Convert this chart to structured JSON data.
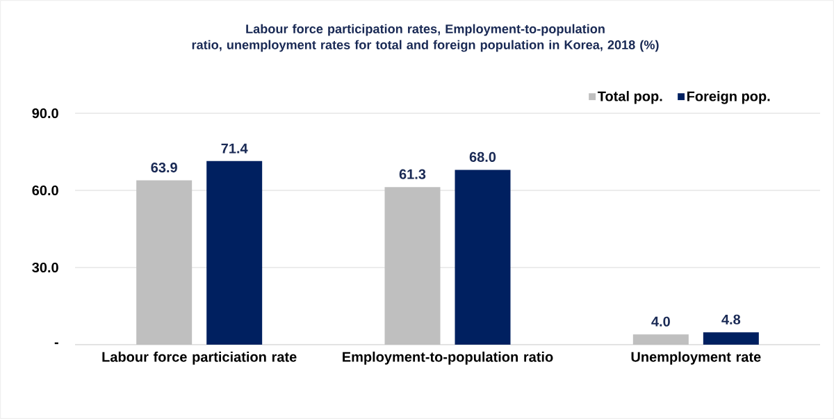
{
  "chart_data": {
    "type": "bar",
    "title": "Labour force participation rates, Employment-to-population ratio, unemployment rates for total and foreign population in Korea,  2018 (%)",
    "categories": [
      "Labour force particiation rate",
      "Employment-to-population ratio",
      "Unemployment rate"
    ],
    "series": [
      {
        "name": "Total pop.",
        "color": "#bfbfbf",
        "values": [
          63.9,
          61.3,
          4.0
        ],
        "value_labels": [
          "63.9",
          "61.3",
          "4.0"
        ]
      },
      {
        "name": "Foreign pop.",
        "color": "#002060",
        "values": [
          71.4,
          68.0,
          4.8
        ],
        "value_labels": [
          "71.4",
          "68.0",
          "4.8"
        ]
      }
    ],
    "ylim": [
      0,
      90
    ],
    "yticks": [
      {
        "value": 0,
        "label": "-"
      },
      {
        "value": 30,
        "label": "30.0"
      },
      {
        "value": 60,
        "label": "60.0"
      },
      {
        "value": 90,
        "label": "90.0"
      }
    ],
    "grid": "y",
    "legend": "top right"
  }
}
